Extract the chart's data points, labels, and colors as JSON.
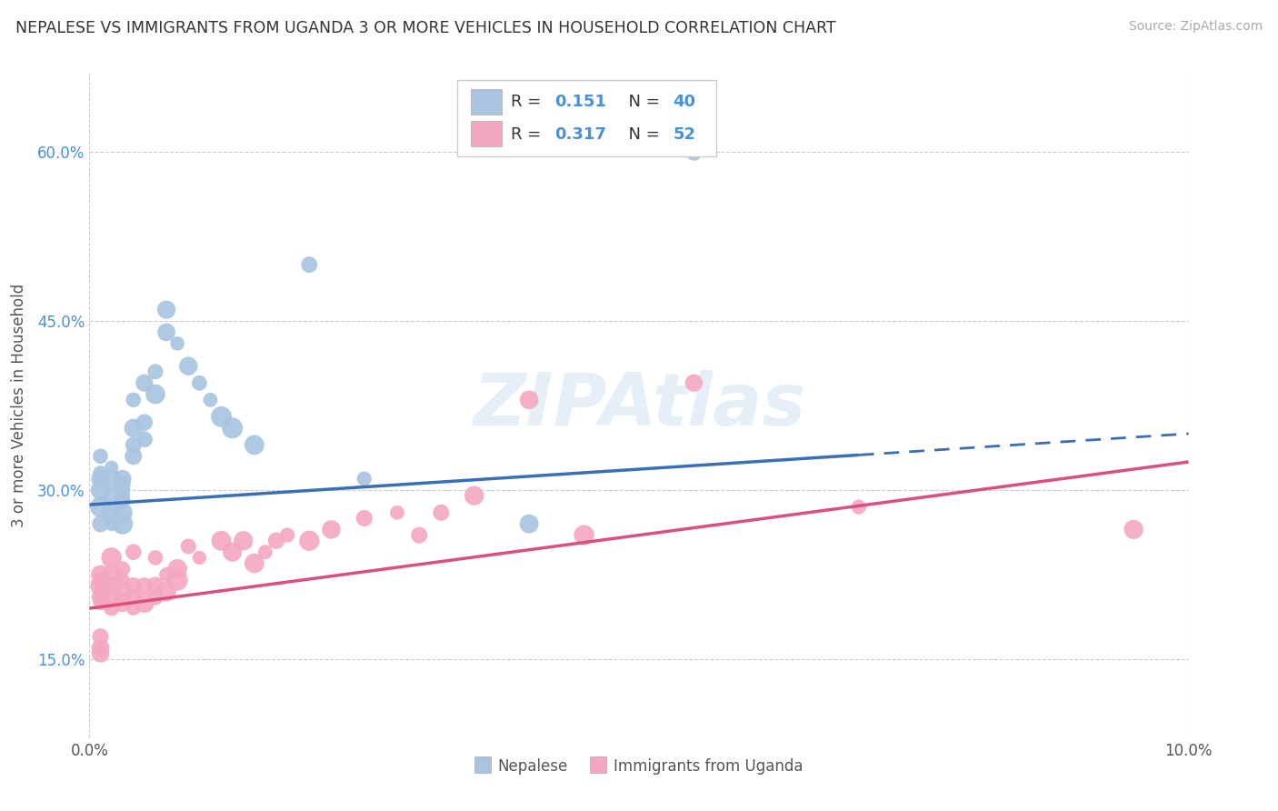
{
  "title": "NEPALESE VS IMMIGRANTS FROM UGANDA 3 OR MORE VEHICLES IN HOUSEHOLD CORRELATION CHART",
  "source": "Source: ZipAtlas.com",
  "ylabel": "3 or more Vehicles in Household",
  "y_ticks": [
    "15.0%",
    "30.0%",
    "45.0%",
    "60.0%"
  ],
  "y_tick_vals": [
    0.15,
    0.3,
    0.45,
    0.6
  ],
  "xlim": [
    0.0,
    0.1
  ],
  "ylim": [
    0.08,
    0.67
  ],
  "legend_labels": [
    "Nepalese",
    "Immigrants from Uganda"
  ],
  "R_nepalese": 0.151,
  "N_nepalese": 40,
  "R_uganda": 0.317,
  "N_uganda": 52,
  "color_nepalese": "#a8c4e0",
  "color_uganda": "#f4a8c0",
  "color_nepalese_line": "#3a6eb5",
  "color_uganda_line": "#d9517a",
  "background_color": "#ffffff",
  "grid_color": "#cccccc",
  "nepalese_x": [
    0.001,
    0.001,
    0.001,
    0.001,
    0.001,
    0.001,
    0.002,
    0.002,
    0.002,
    0.002,
    0.002,
    0.003,
    0.003,
    0.003,
    0.003,
    0.003,
    0.003,
    0.003,
    0.004,
    0.004,
    0.004,
    0.004,
    0.005,
    0.005,
    0.005,
    0.006,
    0.006,
    0.007,
    0.007,
    0.008,
    0.009,
    0.01,
    0.011,
    0.012,
    0.013,
    0.015,
    0.02,
    0.025,
    0.04,
    0.055
  ],
  "nepalese_y": [
    0.27,
    0.285,
    0.3,
    0.31,
    0.315,
    0.33,
    0.27,
    0.28,
    0.295,
    0.31,
    0.32,
    0.27,
    0.28,
    0.29,
    0.295,
    0.3,
    0.305,
    0.31,
    0.33,
    0.34,
    0.355,
    0.38,
    0.345,
    0.36,
    0.395,
    0.385,
    0.405,
    0.44,
    0.46,
    0.43,
    0.41,
    0.395,
    0.38,
    0.365,
    0.355,
    0.34,
    0.5,
    0.31,
    0.27,
    0.6
  ],
  "uganda_x": [
    0.001,
    0.001,
    0.001,
    0.001,
    0.001,
    0.001,
    0.001,
    0.001,
    0.001,
    0.002,
    0.002,
    0.002,
    0.002,
    0.002,
    0.003,
    0.003,
    0.003,
    0.003,
    0.004,
    0.004,
    0.004,
    0.004,
    0.005,
    0.005,
    0.006,
    0.006,
    0.006,
    0.007,
    0.007,
    0.008,
    0.008,
    0.009,
    0.01,
    0.012,
    0.013,
    0.014,
    0.015,
    0.016,
    0.017,
    0.018,
    0.02,
    0.022,
    0.025,
    0.028,
    0.03,
    0.032,
    0.035,
    0.04,
    0.045,
    0.055,
    0.07,
    0.095
  ],
  "uganda_y": [
    0.2,
    0.205,
    0.21,
    0.215,
    0.22,
    0.225,
    0.17,
    0.16,
    0.155,
    0.195,
    0.205,
    0.215,
    0.225,
    0.24,
    0.2,
    0.21,
    0.22,
    0.23,
    0.195,
    0.205,
    0.215,
    0.245,
    0.2,
    0.215,
    0.205,
    0.215,
    0.24,
    0.21,
    0.225,
    0.22,
    0.23,
    0.25,
    0.24,
    0.255,
    0.245,
    0.255,
    0.235,
    0.245,
    0.255,
    0.26,
    0.255,
    0.265,
    0.275,
    0.28,
    0.26,
    0.28,
    0.295,
    0.38,
    0.26,
    0.395,
    0.285,
    0.265
  ],
  "nep_line_x0": 0.0,
  "nep_line_y0": 0.287,
  "nep_line_x1": 0.1,
  "nep_line_y1": 0.35,
  "ug_line_x0": 0.0,
  "ug_line_y0": 0.195,
  "ug_line_x1": 0.1,
  "ug_line_y1": 0.325
}
